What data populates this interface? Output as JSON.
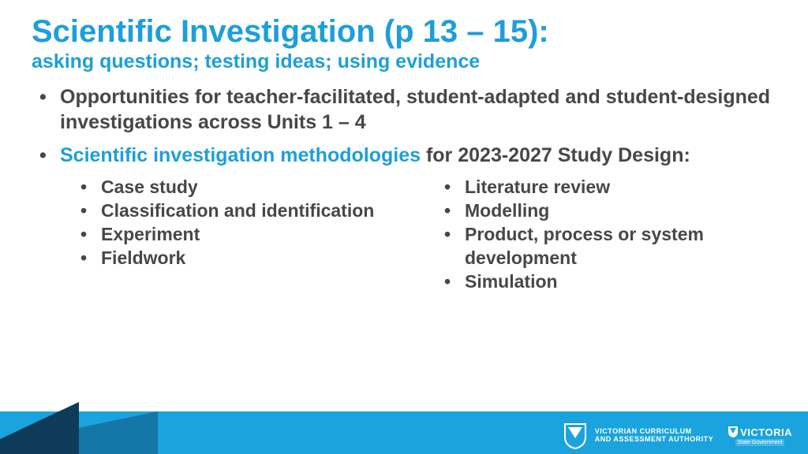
{
  "colors": {
    "accent": "#1d9fd9",
    "body_text": "#474747",
    "footer_bar": "#1aa3dd",
    "footer_dark": "#0f3b5a",
    "footer_mid": "#1576a8",
    "white": "#ffffff"
  },
  "title": "Scientific Investigation (p 13 – 15):",
  "subtitle": "asking questions; testing ideas; using evidence",
  "bullets": [
    {
      "segments": [
        {
          "text": "Opportunities for teacher-facilitated, student-adapted and student-designed investigations across Units 1 – 4",
          "color": "body"
        }
      ]
    },
    {
      "segments": [
        {
          "text": "Scientific investigation methodologies",
          "color": "accent"
        },
        {
          "text": " for 2023-2027 Study Design:",
          "color": "body"
        }
      ]
    }
  ],
  "sub_left": [
    "Case study",
    "Classification and identification",
    "Experiment",
    "Fieldwork"
  ],
  "sub_right": [
    "Literature review",
    "Modelling",
    "Product, process or system development",
    "Simulation"
  ],
  "footer": {
    "vcaa_line1": "VICTORIAN CURRICULUM",
    "vcaa_line2": "AND ASSESSMENT AUTHORITY",
    "vic_brand": "ORIA",
    "vic_prefix": "VICT",
    "vic_sub": "State Government"
  }
}
